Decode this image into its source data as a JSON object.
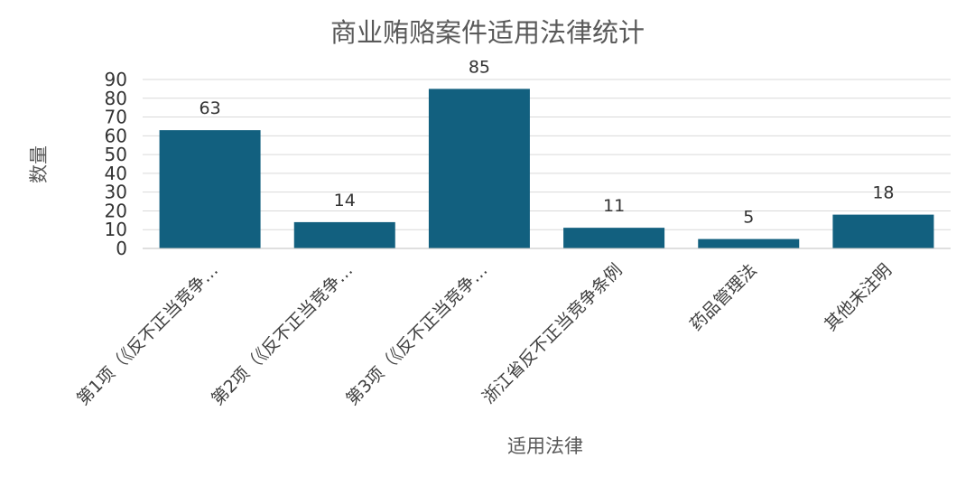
{
  "chart_data": {
    "type": "bar",
    "title": "商业贿赂案件适用法律统计",
    "xlabel": "适用法律",
    "ylabel": "数量",
    "categories": [
      "第1项（《反不正当竞争…",
      "第2项（《反不正当竞争…",
      "第3项（《反不正当竞争…",
      "浙江省反不正当竞争条例",
      "药品管理法",
      "其他未注明"
    ],
    "values": [
      63,
      14,
      85,
      11,
      5,
      18
    ],
    "ylim": [
      0,
      90
    ],
    "yticks": [
      0,
      10,
      20,
      30,
      40,
      50,
      60,
      70,
      80,
      90
    ],
    "grid": true,
    "legend": "none",
    "bar_color": "#12607f"
  }
}
